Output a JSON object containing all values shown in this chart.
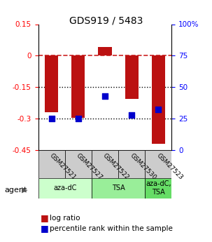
{
  "title": "GDS919 / 5483",
  "samples": [
    "GSM27521",
    "GSM27527",
    "GSM27522",
    "GSM27530",
    "GSM27523"
  ],
  "log_ratios": [
    -0.27,
    -0.295,
    0.042,
    -0.205,
    -0.42
  ],
  "percentile_ranks": [
    25,
    25,
    43,
    28,
    32
  ],
  "ylim_left": [
    -0.45,
    0.15
  ],
  "ylim_right": [
    0,
    100
  ],
  "bar_color": "#BB1111",
  "dot_color": "#0000CC",
  "hline_color": "#CC2222",
  "dotted_lines": [
    -0.15,
    -0.3
  ],
  "groups": [
    {
      "label": "aza-dC",
      "samples": [
        0,
        1
      ],
      "color": "#CCFFCC"
    },
    {
      "label": "TSA",
      "samples": [
        2,
        3
      ],
      "color": "#99EE99"
    },
    {
      "label": "aza-dC,\nTSA",
      "samples": [
        4
      ],
      "color": "#66DD66"
    }
  ],
  "legend_labels": [
    "log ratio",
    "percentile rank within the sample"
  ],
  "agent_label": "agent",
  "bar_width": 0.5,
  "yticks_left": [
    -0.45,
    -0.3,
    -0.15,
    0,
    0.15
  ],
  "ytick_labels_left": [
    "-0.45",
    "-0.3",
    "-0.15",
    "0",
    "0.15"
  ],
  "yticks_right": [
    0,
    25,
    50,
    75,
    100
  ],
  "ytick_labels_right": [
    "0",
    "25",
    "50",
    "75",
    "100%"
  ]
}
